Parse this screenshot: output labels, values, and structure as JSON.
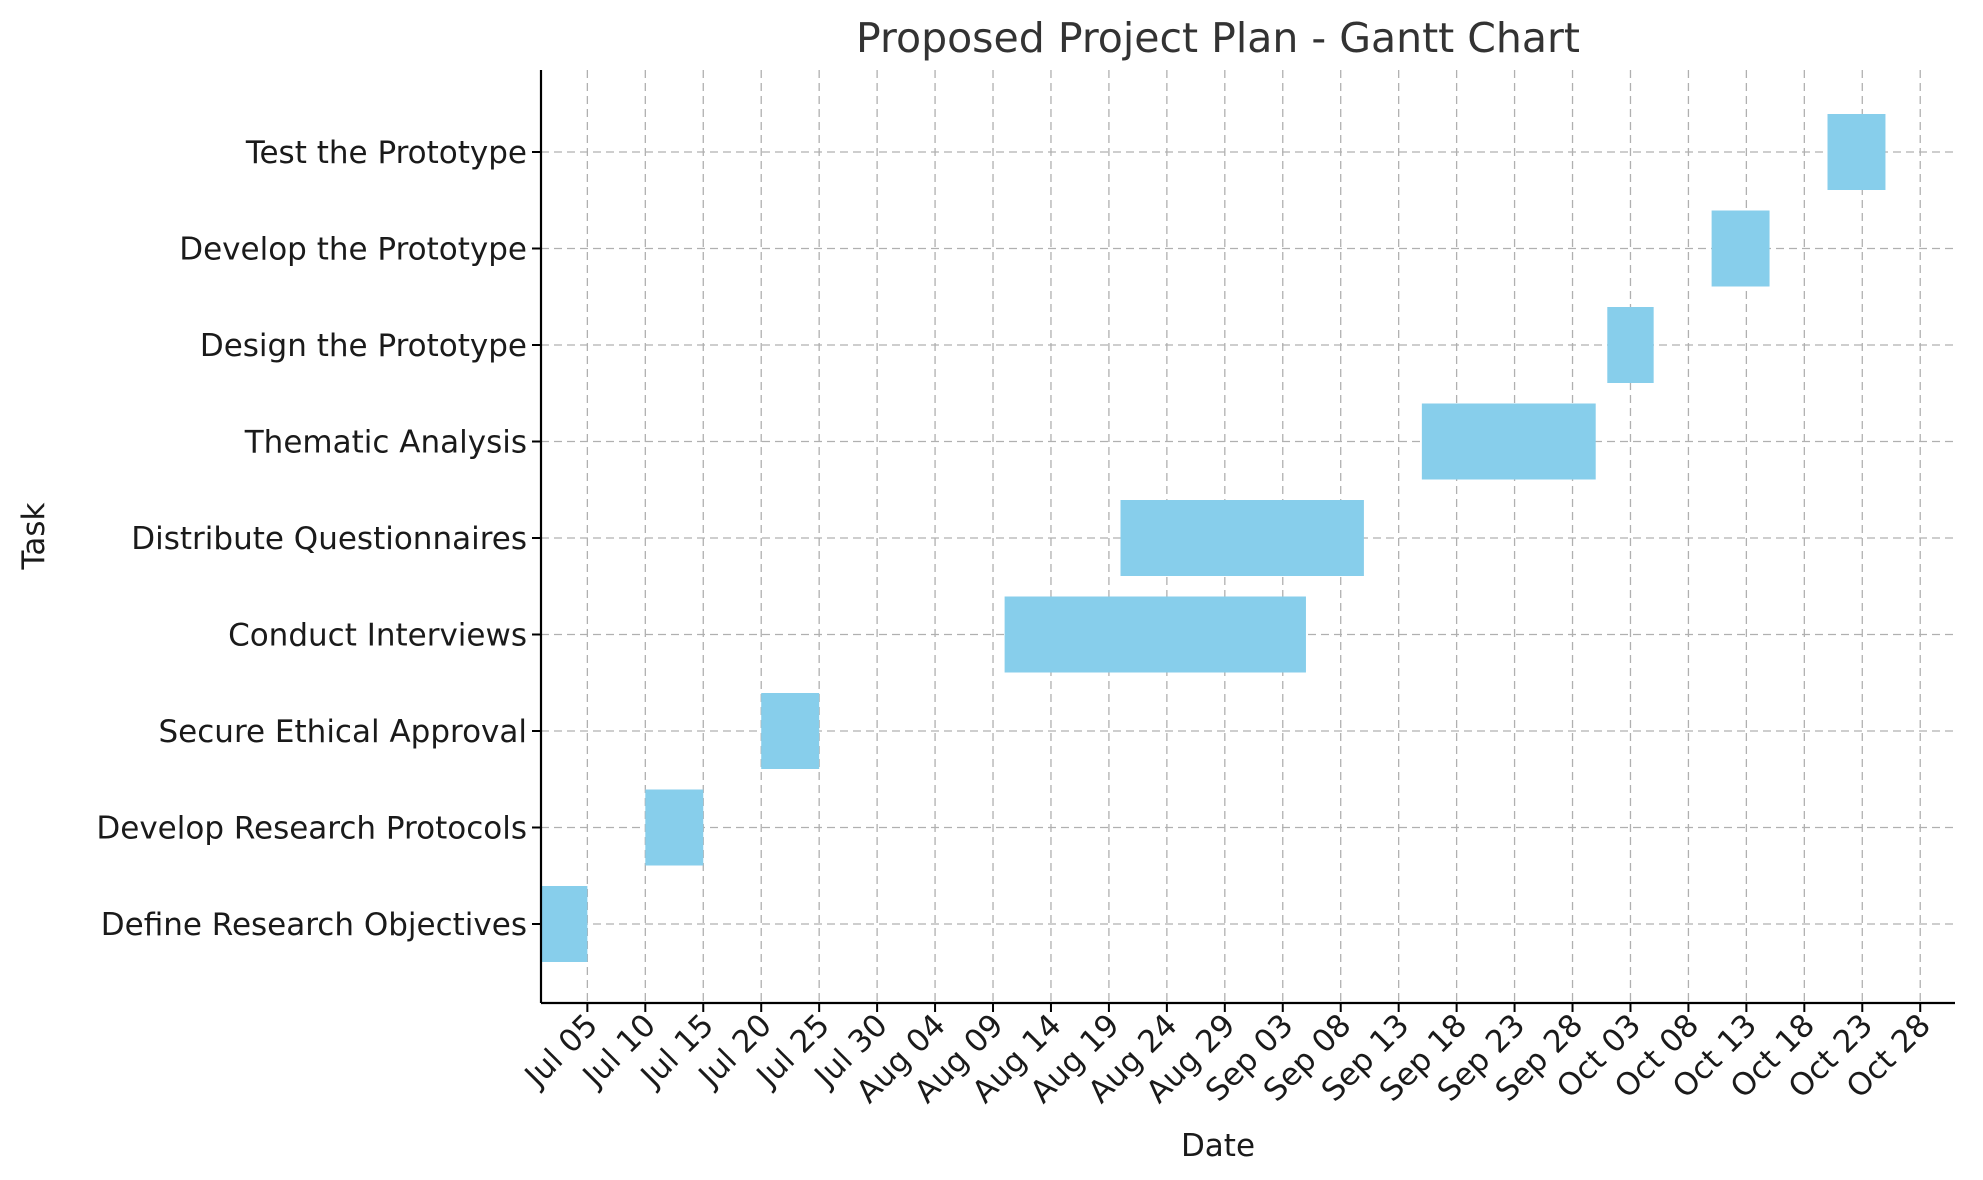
{
  "chart_data": {
    "type": "gantt",
    "title": "Proposed Project Plan - Gantt Chart",
    "xlabel": "Date",
    "ylabel": "Task",
    "bar_color": "#87ceeb",
    "grid": true,
    "x_range": [
      "2023-07-01",
      "2023-10-31"
    ],
    "x_ticks": [
      {
        "date": "2023-07-05",
        "label": "Jul 05"
      },
      {
        "date": "2023-07-10",
        "label": "Jul 10"
      },
      {
        "date": "2023-07-15",
        "label": "Jul 15"
      },
      {
        "date": "2023-07-20",
        "label": "Jul 20"
      },
      {
        "date": "2023-07-25",
        "label": "Jul 25"
      },
      {
        "date": "2023-07-30",
        "label": "Jul 30"
      },
      {
        "date": "2023-08-04",
        "label": "Aug 04"
      },
      {
        "date": "2023-08-09",
        "label": "Aug 09"
      },
      {
        "date": "2023-08-14",
        "label": "Aug 14"
      },
      {
        "date": "2023-08-19",
        "label": "Aug 19"
      },
      {
        "date": "2023-08-24",
        "label": "Aug 24"
      },
      {
        "date": "2023-08-29",
        "label": "Aug 29"
      },
      {
        "date": "2023-09-03",
        "label": "Sep 03"
      },
      {
        "date": "2023-09-08",
        "label": "Sep 08"
      },
      {
        "date": "2023-09-13",
        "label": "Sep 13"
      },
      {
        "date": "2023-09-18",
        "label": "Sep 18"
      },
      {
        "date": "2023-09-23",
        "label": "Sep 23"
      },
      {
        "date": "2023-09-28",
        "label": "Sep 28"
      },
      {
        "date": "2023-10-03",
        "label": "Oct 03"
      },
      {
        "date": "2023-10-08",
        "label": "Oct 08"
      },
      {
        "date": "2023-10-13",
        "label": "Oct 13"
      },
      {
        "date": "2023-10-18",
        "label": "Oct 18"
      },
      {
        "date": "2023-10-23",
        "label": "Oct 23"
      },
      {
        "date": "2023-10-28",
        "label": "Oct 28"
      }
    ],
    "tasks": [
      {
        "name": "Define Research Objectives",
        "start": "2023-07-01",
        "end": "2023-07-05"
      },
      {
        "name": "Develop Research Protocols",
        "start": "2023-07-10",
        "end": "2023-07-15"
      },
      {
        "name": "Secure Ethical Approval",
        "start": "2023-07-20",
        "end": "2023-07-25"
      },
      {
        "name": "Conduct Interviews",
        "start": "2023-08-10",
        "end": "2023-09-05"
      },
      {
        "name": "Distribute Questionnaires",
        "start": "2023-08-20",
        "end": "2023-09-10"
      },
      {
        "name": "Thematic Analysis",
        "start": "2023-09-15",
        "end": "2023-09-30"
      },
      {
        "name": "Design the Prototype",
        "start": "2023-10-01",
        "end": "2023-10-05"
      },
      {
        "name": "Develop the Prototype",
        "start": "2023-10-10",
        "end": "2023-10-15"
      },
      {
        "name": "Test the Prototype",
        "start": "2023-10-20",
        "end": "2023-10-25"
      }
    ]
  }
}
